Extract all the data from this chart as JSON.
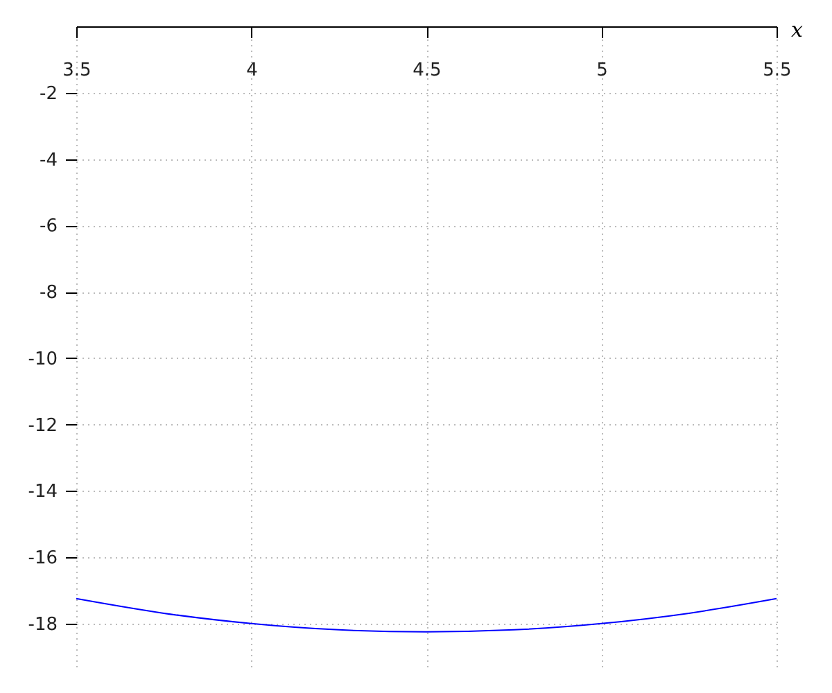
{
  "chart_data": {
    "type": "line",
    "xlabel": "x",
    "x": [
      3.5,
      3.75,
      4,
      4.25,
      4.5,
      4.75,
      5,
      5.25,
      5.5
    ],
    "series": [
      {
        "color": "#0000ff",
        "values": [
          -17.25,
          -17.69,
          -18,
          -18.19,
          -18.25,
          -18.19,
          -18,
          -17.69,
          -17.25
        ]
      }
    ],
    "xlim": [
      3.5,
      5.5
    ],
    "xticks": [
      3.5,
      4,
      4.5,
      5,
      5.5
    ],
    "ylim": [
      -19.3,
      0
    ],
    "yticks": [
      -18,
      -16,
      -14,
      -12,
      -10,
      -8,
      -6,
      -4,
      -2
    ],
    "grid": true
  }
}
